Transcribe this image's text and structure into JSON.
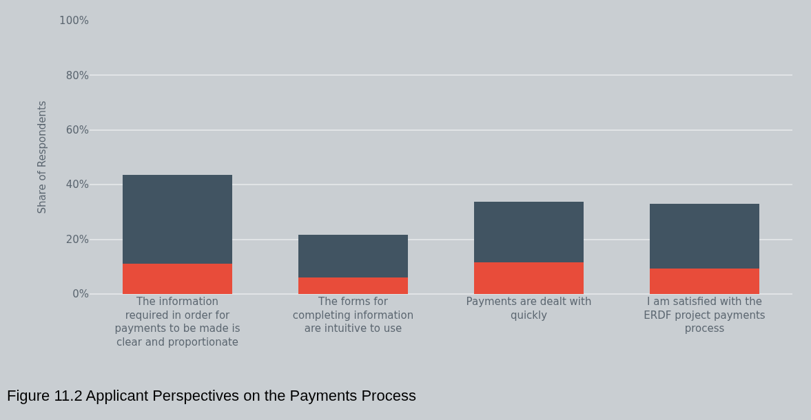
{
  "chart_data": {
    "type": "bar",
    "stacked": true,
    "ylabel": "Share of Respondents",
    "categories": [
      "The information required in order for payments to be made is clear and proportionate",
      "The forms for completing information are intuitive to use",
      "Payments are dealt with quickly",
      "I am satisfied with the ERDF project payments process"
    ],
    "series": [
      {
        "color": "#e84c3a",
        "values": [
          11.2,
          6.0,
          11.5,
          9.4
        ]
      },
      {
        "color": "#415462",
        "values": [
          32.3,
          15.7,
          22.2,
          23.5
        ]
      }
    ],
    "ylim": [
      0,
      100
    ],
    "yticks": [
      {
        "value": 0,
        "label": "0%"
      },
      {
        "value": 20,
        "label": "20%"
      },
      {
        "value": 40,
        "label": "40%"
      },
      {
        "value": 60,
        "label": "60%"
      },
      {
        "value": 80,
        "label": "80%"
      },
      {
        "value": 100,
        "label": "100%"
      }
    ],
    "grid": "y",
    "annotations": [
      "Figure 11.2 Applicant Perspectives on the Payments Process"
    ]
  }
}
